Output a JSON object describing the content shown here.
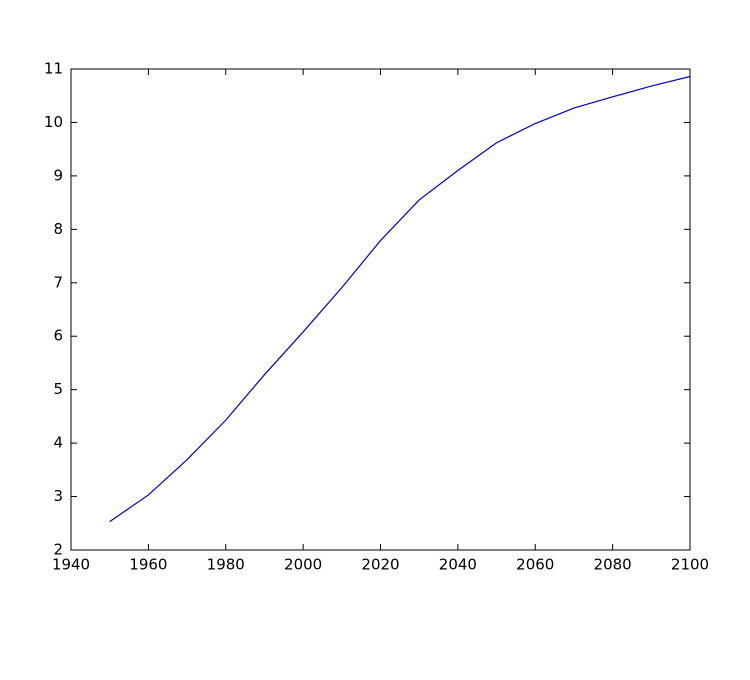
{
  "chart_data": {
    "type": "line",
    "x": [
      1950,
      1960,
      1970,
      1980,
      1990,
      2000,
      2010,
      2020,
      2030,
      2040,
      2050,
      2060,
      2070,
      2080,
      2090,
      2100
    ],
    "series": [
      {
        "color": "#0000cc",
        "values": [
          2.53,
          3.03,
          3.69,
          4.43,
          5.28,
          6.08,
          6.91,
          7.79,
          8.55,
          9.1,
          9.62,
          9.98,
          10.27,
          10.48,
          10.68,
          10.86
        ]
      }
    ],
    "xlim": [
      1940,
      2100
    ],
    "xticks": [
      1940,
      1960,
      1980,
      2000,
      2020,
      2040,
      2060,
      2080,
      2100
    ],
    "ylim": [
      2,
      11
    ],
    "yticks": [
      2,
      3,
      4,
      5,
      6,
      7,
      8,
      9,
      10,
      11
    ],
    "grid": false
  }
}
